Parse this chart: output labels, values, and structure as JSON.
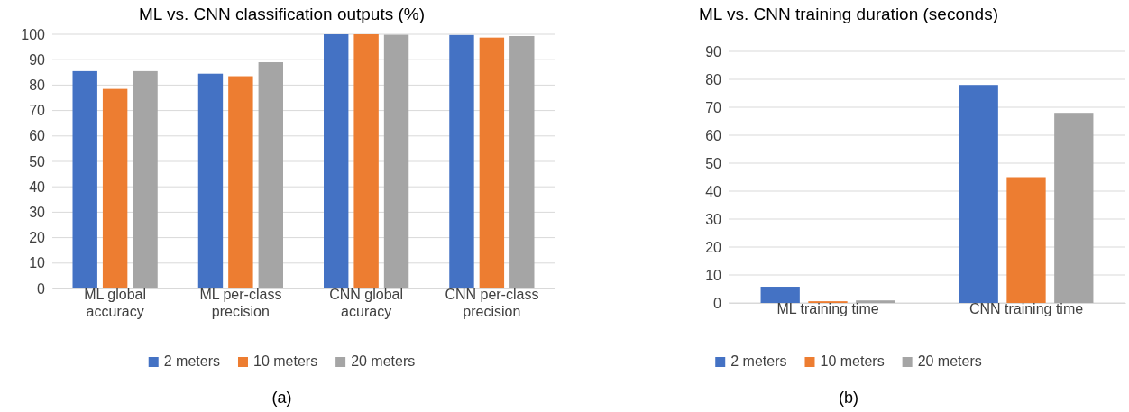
{
  "chart_data": [
    {
      "type": "bar",
      "title": "ML vs. CNN classification outputs (%)",
      "categories": [
        "ML global accuracy",
        "ML per-class precision",
        "CNN global acuracy",
        "CNN per-class precision"
      ],
      "series": [
        {
          "name": "2 meters",
          "color": "#4472c4",
          "values": [
            85.5,
            84.5,
            100,
            99.7
          ]
        },
        {
          "name": "10 meters",
          "color": "#ed7d31",
          "values": [
            78.5,
            83.5,
            100,
            98.7
          ]
        },
        {
          "name": "20 meters",
          "color": "#a5a5a5",
          "values": [
            85.5,
            89,
            99.8,
            99.3
          ]
        }
      ],
      "ylim": [
        0,
        100
      ],
      "yticks": [
        0,
        10,
        20,
        30,
        40,
        50,
        60,
        70,
        80,
        90,
        100
      ],
      "grid": "y",
      "legend": "bottom",
      "annotations": [
        "(a)"
      ]
    },
    {
      "type": "bar",
      "title": "ML vs. CNN training duration (seconds)",
      "categories": [
        "ML training time",
        "CNN training time"
      ],
      "series": [
        {
          "name": "2 meters",
          "color": "#4472c4",
          "values": [
            5.8,
            78
          ]
        },
        {
          "name": "10 meters",
          "color": "#ed7d31",
          "values": [
            0.6,
            45
          ]
        },
        {
          "name": "20 meters",
          "color": "#a5a5a5",
          "values": [
            0.9,
            68
          ]
        }
      ],
      "ylim": [
        0,
        90
      ],
      "yticks": [
        0,
        10,
        20,
        30,
        40,
        50,
        60,
        70,
        80,
        90
      ],
      "grid": "y",
      "legend": "bottom",
      "annotations": [
        "(b)"
      ]
    }
  ]
}
